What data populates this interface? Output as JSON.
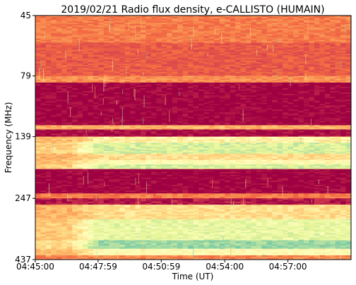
{
  "chart_data": {
    "type": "heatmap",
    "title": "2019/02/21  Radio flux density, e-CALLISTO (HUMAIN)",
    "xlabel": "Time (UT)",
    "ylabel": "Frequency (MHz)",
    "x_tick_labels": [
      "04:45:00",
      "04:47:59",
      "04:50:59",
      "04:54:00",
      "04:57:00"
    ],
    "x_tick_seconds": [
      0,
      179,
      359,
      540,
      720
    ],
    "xlim_seconds": [
      0,
      900
    ],
    "y_tick_labels": [
      "45",
      "79",
      "139",
      "247",
      "437"
    ],
    "y_tick_values": [
      45,
      79,
      139,
      247,
      437
    ],
    "ylim": [
      45,
      437
    ],
    "colormap": "Spectral_r",
    "colors": {
      "low": "#9e0142",
      "mid_low": "#f46d43",
      "mid": "#fee08b",
      "mid_high": "#e6f598",
      "high": "#66c2a5",
      "highest": "#3288bd"
    },
    "frequency_bands": [
      {
        "f_start": 45,
        "f_end": 58,
        "level": 0.28
      },
      {
        "f_start": 58,
        "f_end": 79,
        "level": 0.2
      },
      {
        "f_start": 79,
        "f_end": 84,
        "level": 0.32
      },
      {
        "f_start": 84,
        "f_end": 125,
        "level": 0.0
      },
      {
        "f_start": 125,
        "f_end": 130,
        "level": 0.4
      },
      {
        "f_start": 130,
        "f_end": 139,
        "level": 0.02
      },
      {
        "f_start": 139,
        "f_end": 147,
        "level": 0.55
      },
      {
        "f_start": 147,
        "f_end": 163,
        "level": 0.72
      },
      {
        "f_start": 163,
        "f_end": 173,
        "level": 0.5
      },
      {
        "f_start": 173,
        "f_end": 180,
        "level": 0.6
      },
      {
        "f_start": 180,
        "f_end": 188,
        "level": 0.72
      },
      {
        "f_start": 188,
        "f_end": 236,
        "level": 0.0
      },
      {
        "f_start": 236,
        "f_end": 247,
        "level": 0.28
      },
      {
        "f_start": 247,
        "f_end": 262,
        "level": 0.05
      },
      {
        "f_start": 262,
        "f_end": 300,
        "level": 0.5
      },
      {
        "f_start": 300,
        "f_end": 365,
        "level": 0.68
      },
      {
        "f_start": 365,
        "f_end": 395,
        "level": 0.82
      },
      {
        "f_start": 395,
        "f_end": 420,
        "level": 0.6
      },
      {
        "f_start": 420,
        "f_end": 437,
        "level": 0.3
      }
    ],
    "burst_onset_seconds": 150,
    "grid": false,
    "legend": false
  }
}
